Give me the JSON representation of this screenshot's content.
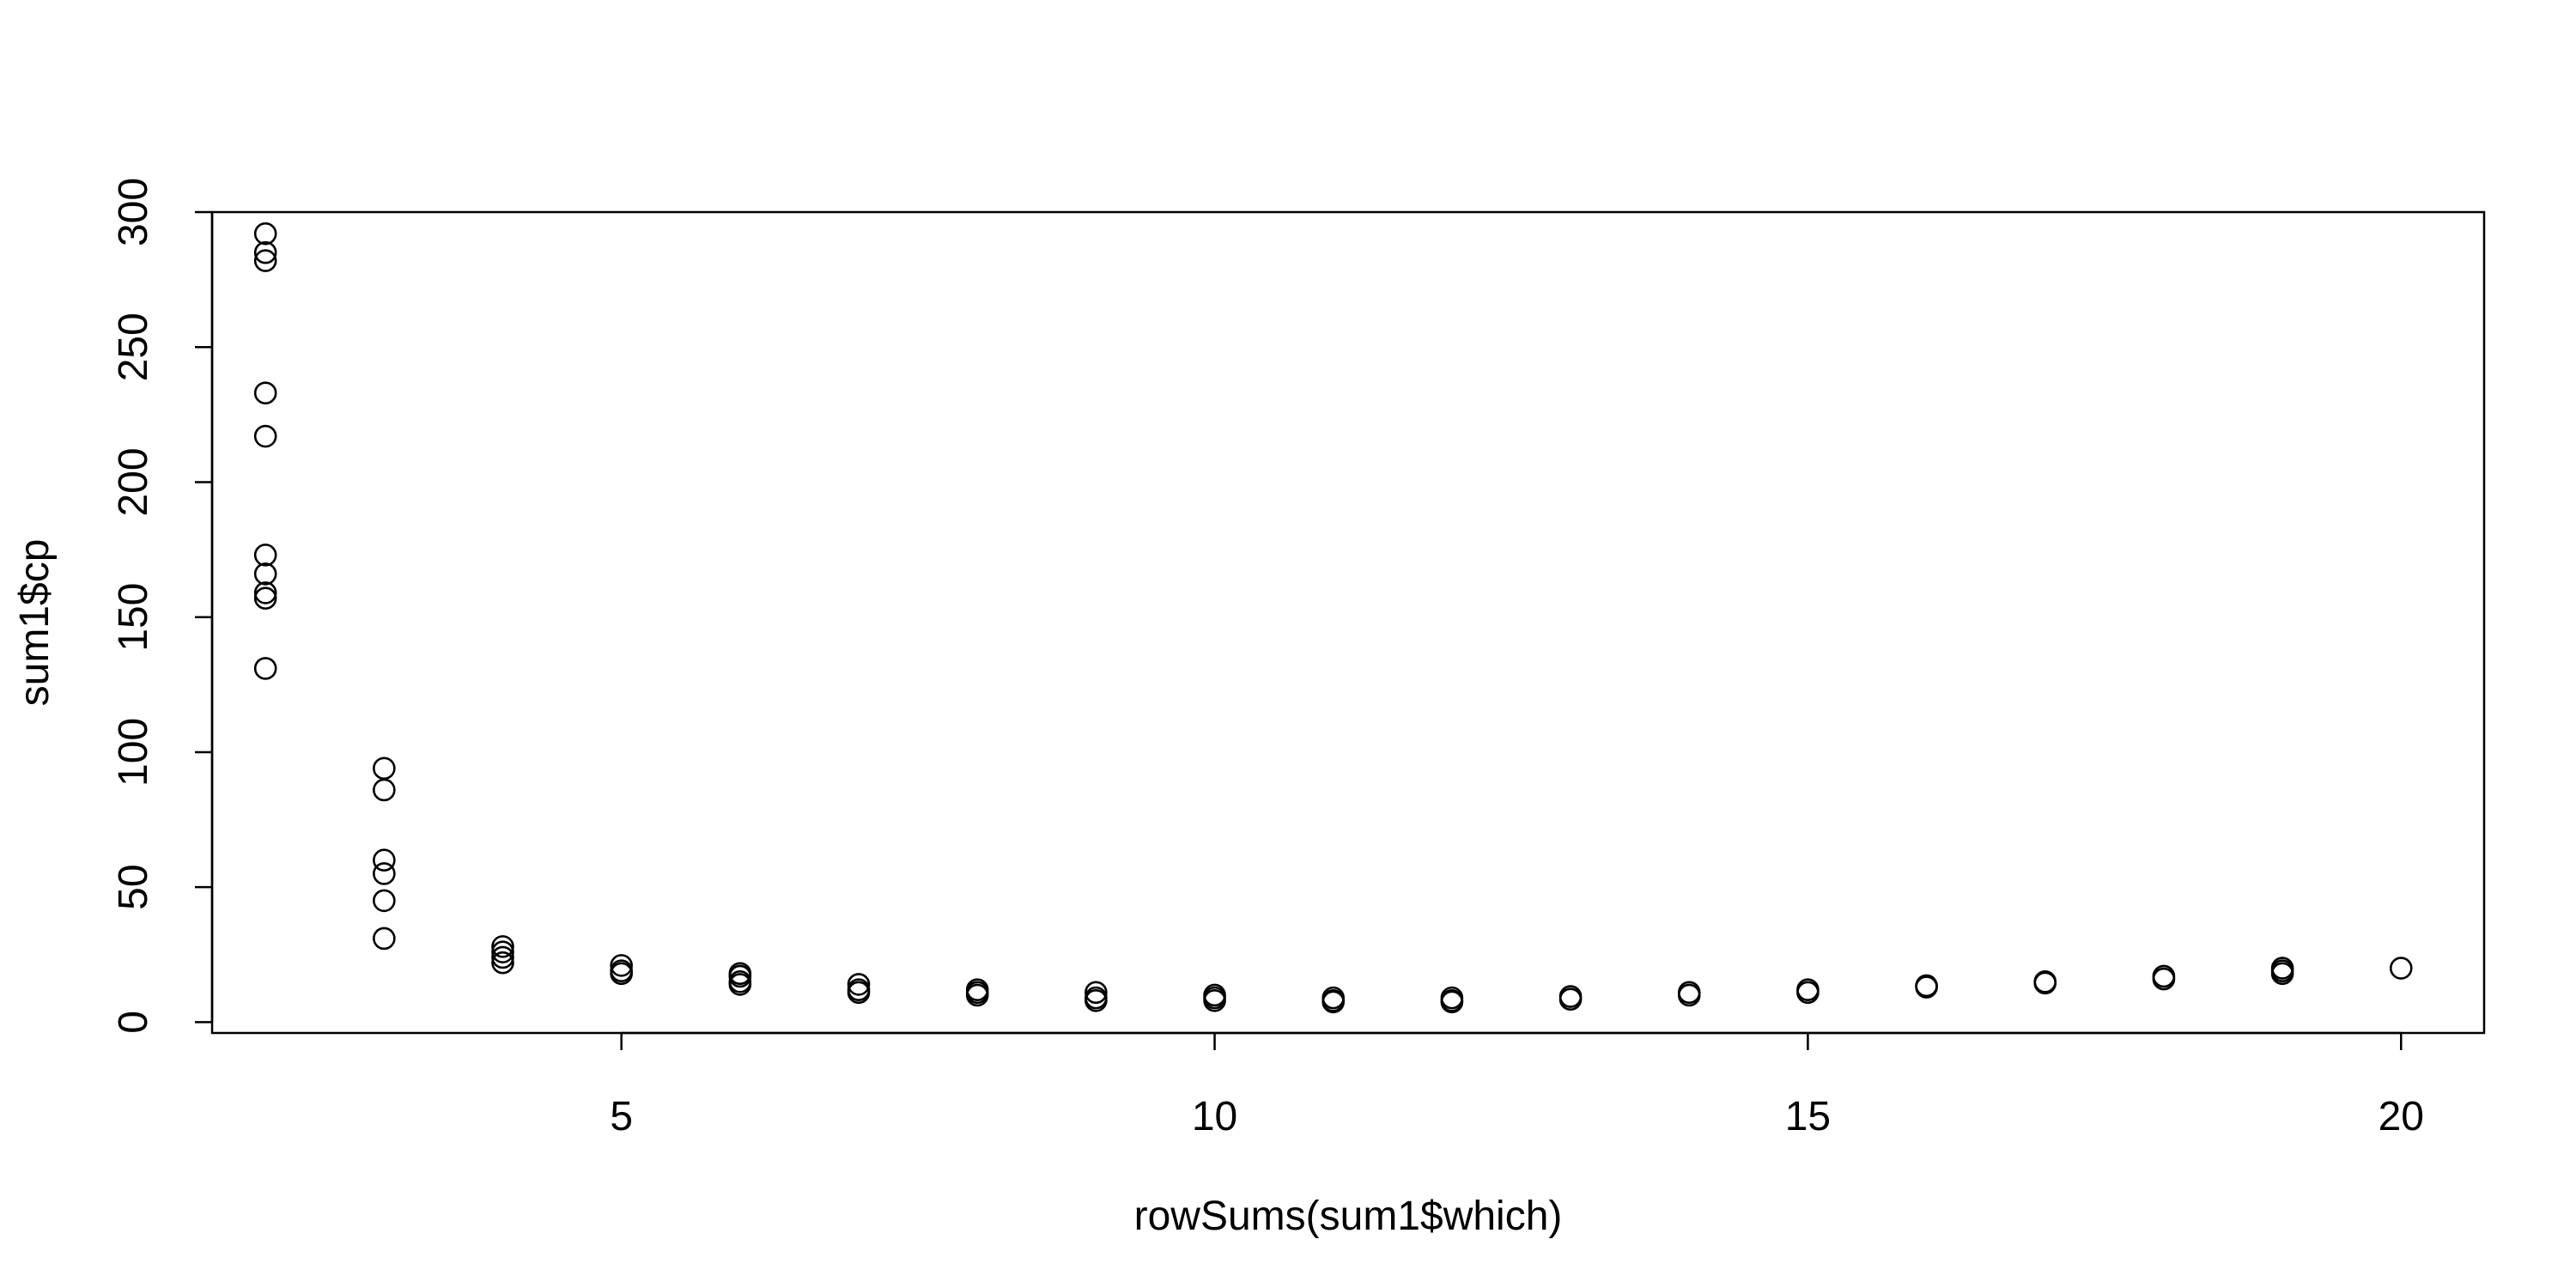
{
  "chart_data": {
    "type": "scatter",
    "title": "",
    "xlabel": "rowSums(sum1$which)",
    "ylabel": "sum1$cp",
    "xlim": [
      1.55,
      20.7
    ],
    "ylim": [
      -4,
      300
    ],
    "x_ticks": [
      5,
      10,
      15,
      20
    ],
    "y_ticks": [
      0,
      50,
      100,
      150,
      200,
      250,
      300
    ],
    "grid": false,
    "points": [
      {
        "x": 2,
        "y": 292
      },
      {
        "x": 2,
        "y": 285
      },
      {
        "x": 2,
        "y": 282
      },
      {
        "x": 2,
        "y": 233
      },
      {
        "x": 2,
        "y": 217
      },
      {
        "x": 2,
        "y": 173
      },
      {
        "x": 2,
        "y": 166
      },
      {
        "x": 2,
        "y": 159
      },
      {
        "x": 2,
        "y": 157
      },
      {
        "x": 2,
        "y": 131
      },
      {
        "x": 3,
        "y": 94
      },
      {
        "x": 3,
        "y": 86
      },
      {
        "x": 3,
        "y": 60
      },
      {
        "x": 3,
        "y": 55
      },
      {
        "x": 3,
        "y": 45
      },
      {
        "x": 3,
        "y": 31
      },
      {
        "x": 4,
        "y": 28
      },
      {
        "x": 4,
        "y": 26
      },
      {
        "x": 4,
        "y": 24
      },
      {
        "x": 4,
        "y": 22
      },
      {
        "x": 5,
        "y": 21
      },
      {
        "x": 5,
        "y": 19
      },
      {
        "x": 5,
        "y": 18
      },
      {
        "x": 6,
        "y": 18
      },
      {
        "x": 6,
        "y": 17
      },
      {
        "x": 6,
        "y": 15
      },
      {
        "x": 6,
        "y": 14
      },
      {
        "x": 7,
        "y": 14
      },
      {
        "x": 7,
        "y": 12
      },
      {
        "x": 7,
        "y": 11
      },
      {
        "x": 8,
        "y": 12
      },
      {
        "x": 8,
        "y": 11
      },
      {
        "x": 8,
        "y": 10
      },
      {
        "x": 9,
        "y": 11
      },
      {
        "x": 9,
        "y": 9
      },
      {
        "x": 9,
        "y": 8
      },
      {
        "x": 10,
        "y": 10
      },
      {
        "x": 10,
        "y": 9
      },
      {
        "x": 10,
        "y": 8
      },
      {
        "x": 11,
        "y": 9
      },
      {
        "x": 11,
        "y": 8
      },
      {
        "x": 11,
        "y": 7.5
      },
      {
        "x": 12,
        "y": 9
      },
      {
        "x": 12,
        "y": 8
      },
      {
        "x": 12,
        "y": 7.5
      },
      {
        "x": 13,
        "y": 9.5
      },
      {
        "x": 13,
        "y": 8.5
      },
      {
        "x": 14,
        "y": 11
      },
      {
        "x": 14,
        "y": 10
      },
      {
        "x": 15,
        "y": 12
      },
      {
        "x": 15,
        "y": 11
      },
      {
        "x": 16,
        "y": 13.5
      },
      {
        "x": 16,
        "y": 13
      },
      {
        "x": 17,
        "y": 15
      },
      {
        "x": 17,
        "y": 14.5
      },
      {
        "x": 18,
        "y": 17
      },
      {
        "x": 18,
        "y": 16
      },
      {
        "x": 19,
        "y": 20
      },
      {
        "x": 19,
        "y": 19
      },
      {
        "x": 19,
        "y": 18
      },
      {
        "x": 20,
        "y": 20
      }
    ]
  }
}
